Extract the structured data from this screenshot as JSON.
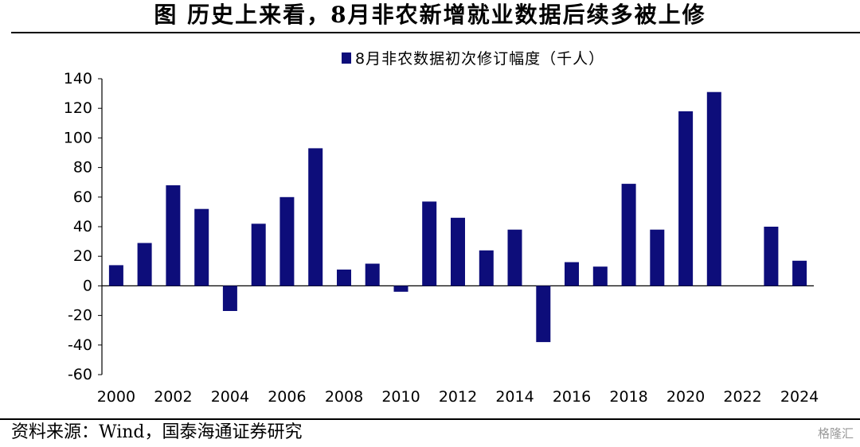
{
  "figure": {
    "title": "图    历史上来看，8月非农新增就业数据后续多被上修",
    "source": "资料来源：Wind，国泰海通证券研究",
    "watermark": "格隆汇"
  },
  "colors": {
    "bar": "#0d0d7a",
    "axis": "#000000"
  },
  "chart_data": {
    "type": "bar",
    "title": "",
    "xlabel": "",
    "ylabel": "",
    "ylim": [
      -60,
      140
    ],
    "yticks": [
      -60,
      -40,
      -20,
      0,
      20,
      40,
      60,
      80,
      100,
      120,
      140
    ],
    "legend_position": "top-center",
    "grid": false,
    "categories": [
      "2000",
      "2001",
      "2002",
      "2003",
      "2004",
      "2005",
      "2006",
      "2007",
      "2008",
      "2009",
      "2010",
      "2011",
      "2012",
      "2013",
      "2014",
      "2015",
      "2016",
      "2017",
      "2018",
      "2019",
      "2020",
      "2021",
      "2022",
      "2023",
      "2024"
    ],
    "x_tick_labels": [
      "2000",
      "2002",
      "2004",
      "2006",
      "2008",
      "2010",
      "2012",
      "2014",
      "2016",
      "2018",
      "2020",
      "2022",
      "2024"
    ],
    "series": [
      {
        "name": "8月非农数据初次修订幅度（千人）",
        "values": [
          14,
          29,
          68,
          52,
          -17,
          42,
          60,
          93,
          11,
          15,
          -4,
          57,
          46,
          24,
          38,
          -38,
          16,
          13,
          69,
          38,
          118,
          131,
          0,
          40,
          17
        ]
      }
    ]
  }
}
